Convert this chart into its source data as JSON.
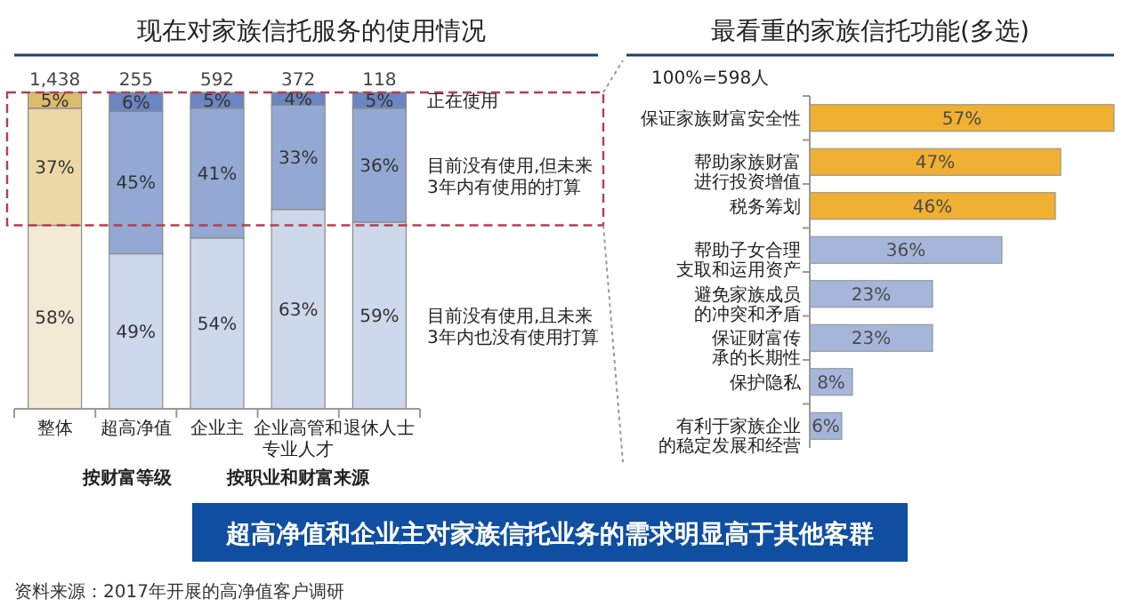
{
  "chart_data": [
    {
      "type": "bar",
      "stacked": true,
      "title": "现在对家族信托服务的使用情况",
      "categories": [
        "整体",
        "超高净值",
        "企业主",
        "企业高管和专业人才",
        "退休人士"
      ],
      "series": [
        {
          "name": "目前没有使用,且未来3年内也没有使用打算",
          "colors": [
            "#f3ead6",
            "#cdd8ea",
            "#cdd8ea",
            "#cdd8ea",
            "#cdd8ea"
          ],
          "values": [
            58,
            49,
            54,
            63,
            59
          ],
          "value_labels": [
            "58%",
            "49%",
            "54%",
            "63%",
            "59%"
          ]
        },
        {
          "name": "目前没有使用,但未来3年内有使用的打算",
          "colors": [
            "#ecd8a6",
            "#93a9d3",
            "#93a9d3",
            "#93a9d3",
            "#93a9d3"
          ],
          "values": [
            37,
            45,
            41,
            33,
            36
          ],
          "value_labels": [
            "37%",
            "45%",
            "41%",
            "33%",
            "36%"
          ]
        },
        {
          "name": "正在使用",
          "colors": [
            "#dcbb6e",
            "#6b86c0",
            "#6b86c0",
            "#6b86c0",
            "#6b86c0"
          ],
          "values": [
            5,
            6,
            5,
            4,
            5
          ],
          "value_labels": [
            "5%",
            "6%",
            "5%",
            "4%",
            "5%"
          ]
        }
      ],
      "annotations": [
        "1,438",
        "255",
        "592",
        "372",
        "118",
        "按财富等级",
        "按职业和财富来源",
        "超高净值和企业主对家族信托业务的需求明显高于其他客群",
        "资料来源：2017年开展的高净值客户调研"
      ]
    },
    {
      "type": "bar",
      "orientation": "horizontal",
      "title": "最看重的家族信托功能(多选)",
      "categories": [
        "保证家族财富安全性",
        "帮助家族财富进行投资增值",
        "税务筹划",
        "帮助子女合理支取和运用资产",
        "避免家族成员的冲突和矛盾",
        "保证财富传承的长期性",
        "保护隐私",
        "有利于家族企业的稳定发展和经营"
      ],
      "values": [
        57,
        47,
        46,
        36,
        23,
        23,
        8,
        6
      ],
      "colors": [
        "#f0b032",
        "#f0b032",
        "#f0b032",
        "#a6b6db",
        "#a6b6db",
        "#a6b6db",
        "#a6b6db",
        "#a6b6db"
      ],
      "value_labels": [
        "57%",
        "47%",
        "46%",
        "36%",
        "23%",
        "23%",
        "8%",
        "6%"
      ],
      "annotations": [
        "100%=598人"
      ]
    }
  ]
}
